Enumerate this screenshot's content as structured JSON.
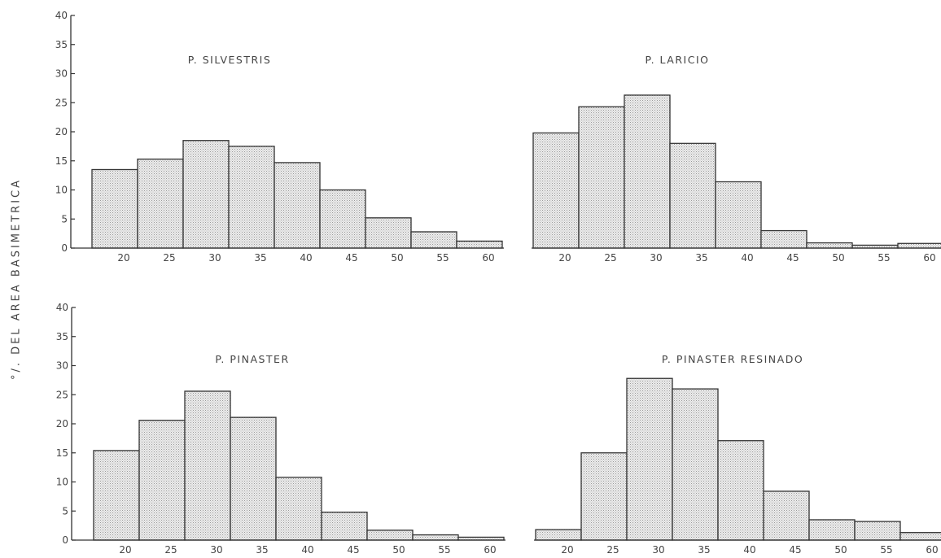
{
  "ylabel": "°/. DEL AREA BASIMETRICA",
  "colors": {
    "bar_fill": "#e2e2e2",
    "stroke": "#333333",
    "text": "#444444"
  },
  "chart_data": [
    {
      "type": "bar",
      "title": "P. SILVESTRIS",
      "categories": [
        "20",
        "25",
        "30",
        "35",
        "40",
        "45",
        "50",
        "55",
        "60"
      ],
      "values": [
        13.5,
        15.3,
        18.5,
        17.5,
        14.7,
        10.0,
        5.2,
        2.8,
        1.2
      ],
      "ylim": [
        0,
        40
      ],
      "yticks": [
        0,
        5,
        10,
        15,
        20,
        25,
        30,
        35,
        40
      ]
    },
    {
      "type": "bar",
      "title": "P. LARICIO",
      "categories": [
        "20",
        "25",
        "30",
        "35",
        "40",
        "45",
        "50",
        "55",
        "60"
      ],
      "values": [
        19.8,
        24.3,
        26.3,
        18.0,
        11.4,
        3.0,
        0.9,
        0.5,
        0.8
      ],
      "ylim": [
        0,
        40
      ],
      "yticks": []
    },
    {
      "type": "bar",
      "title": "P. PINASTER",
      "categories": [
        "20",
        "25",
        "30",
        "35",
        "40",
        "45",
        "50",
        "55",
        "60"
      ],
      "values": [
        15.4,
        20.6,
        25.6,
        21.1,
        10.8,
        4.8,
        1.7,
        0.9,
        0.5
      ],
      "ylim": [
        0,
        40
      ],
      "yticks": [
        0,
        5,
        10,
        15,
        20,
        25,
        30,
        35,
        40
      ]
    },
    {
      "type": "bar",
      "title": "P. PINASTER RESINADO",
      "categories": [
        "20",
        "25",
        "30",
        "35",
        "40",
        "45",
        "50",
        "55",
        "60"
      ],
      "values": [
        1.8,
        15.0,
        27.8,
        26.0,
        17.1,
        8.4,
        3.5,
        3.2,
        1.3
      ],
      "ylim": [
        0,
        40
      ],
      "yticks": []
    }
  ]
}
